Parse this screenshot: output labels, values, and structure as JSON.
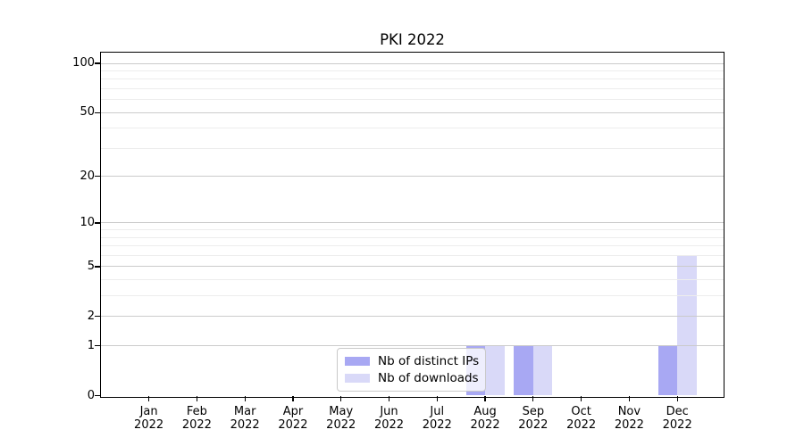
{
  "chart_data": {
    "type": "bar",
    "title": "PKI 2022",
    "x_tick_labels": [
      {
        "line1": "Jan",
        "line2": "2022"
      },
      {
        "line1": "Feb",
        "line2": "2022"
      },
      {
        "line1": "Mar",
        "line2": "2022"
      },
      {
        "line1": "Apr",
        "line2": "2022"
      },
      {
        "line1": "May",
        "line2": "2022"
      },
      {
        "line1": "Jun",
        "line2": "2022"
      },
      {
        "line1": "Jul",
        "line2": "2022"
      },
      {
        "line1": "Aug",
        "line2": "2022"
      },
      {
        "line1": "Sep",
        "line2": "2022"
      },
      {
        "line1": "Oct",
        "line2": "2022"
      },
      {
        "line1": "Nov",
        "line2": "2022"
      },
      {
        "line1": "Dec",
        "line2": "2022"
      }
    ],
    "series": [
      {
        "name": "Nb of distinct IPs",
        "color": "#a8a8f3",
        "values": [
          0,
          0,
          0,
          0,
          0,
          0,
          0,
          1,
          1,
          0,
          0,
          1
        ]
      },
      {
        "name": "Nb of downloads",
        "color": "#d9d9f8",
        "values": [
          0,
          0,
          0,
          0,
          0,
          0,
          0,
          1,
          1,
          0,
          0,
          6
        ]
      }
    ],
    "y_scale": "log1p",
    "y_major_ticks": [
      0,
      1,
      2,
      5,
      10,
      20,
      50,
      100
    ],
    "y_minor_gridlines": [
      3,
      4,
      6,
      7,
      8,
      9,
      30,
      40,
      60,
      70,
      80,
      90
    ],
    "ylim": [
      0,
      116
    ],
    "grid": true,
    "legend": {
      "position": "lower-center"
    }
  }
}
